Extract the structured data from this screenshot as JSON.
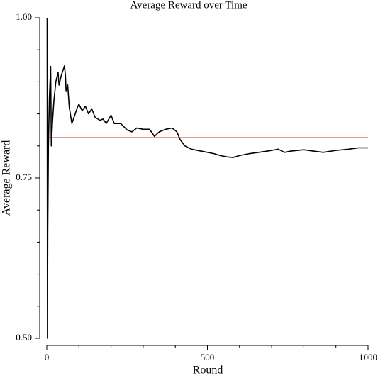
{
  "chart_data": {
    "type": "line",
    "title": "Average Reward over Time",
    "x_label": "Round",
    "y_label": "Average Reward",
    "x": [
      1,
      2,
      3,
      5,
      8,
      10,
      12,
      14,
      18,
      22,
      28,
      35,
      38,
      45,
      55,
      58,
      60,
      65,
      70,
      78,
      85,
      95,
      100,
      110,
      120,
      130,
      140,
      150,
      165,
      175,
      185,
      200,
      210,
      230,
      250,
      265,
      280,
      300,
      320,
      335,
      350,
      370,
      390,
      405,
      415,
      430,
      450,
      480,
      500,
      520,
      540,
      560,
      580,
      600,
      630,
      660,
      700,
      720,
      740,
      760,
      800,
      830,
      860,
      900,
      940,
      970,
      1000
    ],
    "series": [
      {
        "name": "Average Reward",
        "color": "#000000",
        "values": [
          1.0,
          0.5,
          0.667,
          0.8,
          0.875,
          0.9,
          0.924,
          0.8,
          0.84,
          0.87,
          0.9,
          0.915,
          0.895,
          0.91,
          0.925,
          0.91,
          0.885,
          0.895,
          0.86,
          0.835,
          0.845,
          0.86,
          0.865,
          0.855,
          0.862,
          0.85,
          0.858,
          0.845,
          0.84,
          0.842,
          0.835,
          0.848,
          0.835,
          0.835,
          0.825,
          0.822,
          0.828,
          0.826,
          0.826,
          0.815,
          0.822,
          0.826,
          0.828,
          0.822,
          0.81,
          0.8,
          0.795,
          0.792,
          0.79,
          0.788,
          0.785,
          0.783,
          0.782,
          0.785,
          0.788,
          0.79,
          0.793,
          0.795,
          0.79,
          0.792,
          0.794,
          0.792,
          0.79,
          0.793,
          0.795,
          0.797,
          0.797
        ]
      }
    ],
    "reference_line": {
      "value": 0.813,
      "color": "#e03030"
    },
    "xlim": [
      0,
      1000
    ],
    "xticks": [
      0,
      500,
      1000
    ],
    "xminor_ticks": [
      100,
      200,
      300,
      400,
      600,
      700,
      800,
      900
    ],
    "ylim": [
      0.5,
      1.0
    ],
    "yticks": [
      {
        "value": 0.5,
        "label": "0.50"
      },
      {
        "value": 0.75,
        "label": "0.75"
      },
      {
        "value": 1.0,
        "label": "1.00"
      }
    ],
    "yminor_ticks": [
      0.55,
      0.6,
      0.65,
      0.7,
      0.8,
      0.85,
      0.9,
      0.95
    ],
    "grid": false
  }
}
